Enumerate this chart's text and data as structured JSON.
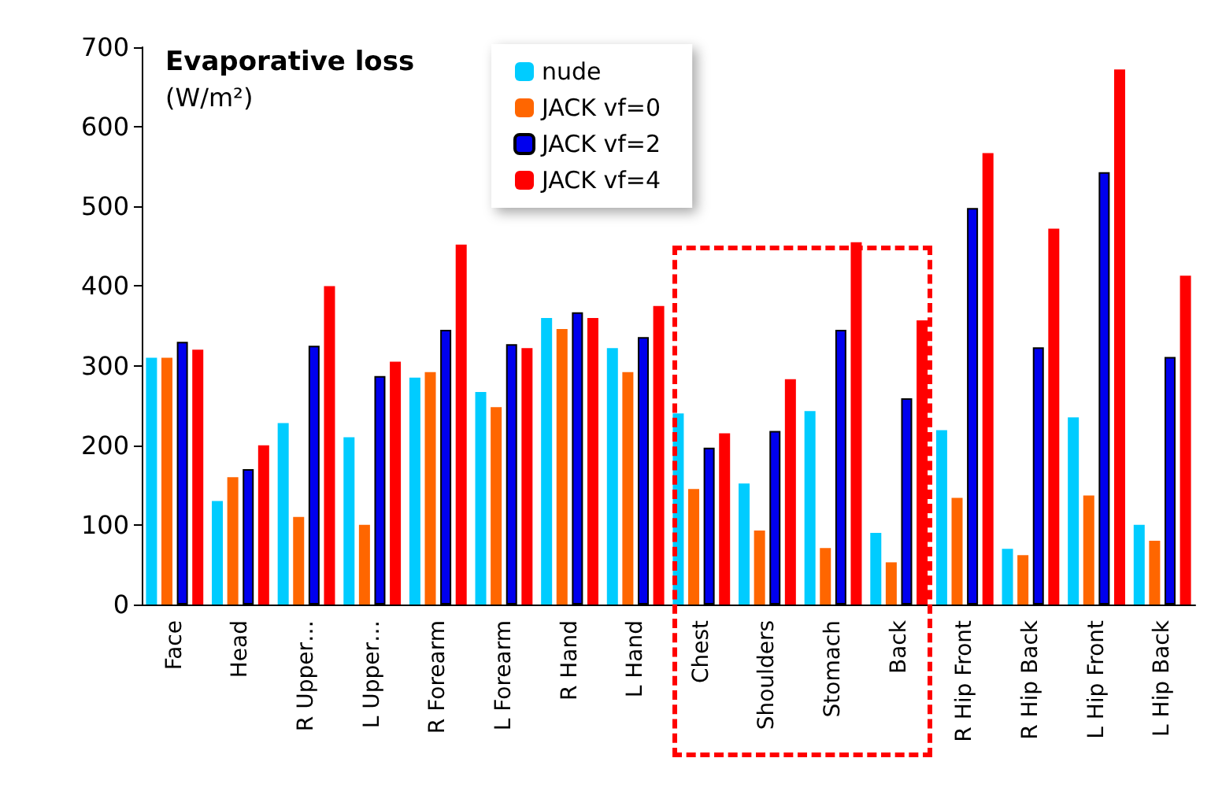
{
  "chart_data": {
    "type": "bar",
    "title": "Evaporative loss",
    "subtitle": "(W/m²)",
    "categories": [
      "Face",
      "Head",
      "R Upper…",
      "L Upper…",
      "R Forearm",
      "L Forearm",
      "R Hand",
      "L Hand",
      "Chest",
      "Shoulders",
      "Stomach",
      "Back",
      "R Hip Front",
      "R Hip Back",
      "L Hip Front",
      "L Hip Back"
    ],
    "series": [
      {
        "name": "nude",
        "color": "#00ccff",
        "values": [
          310,
          130,
          228,
          210,
          285,
          267,
          360,
          322,
          240,
          152,
          243,
          90,
          219,
          70,
          235,
          100
        ]
      },
      {
        "name": "JACK vf=0",
        "color": "#ff6600",
        "values": [
          310,
          160,
          110,
          100,
          292,
          248,
          346,
          292,
          145,
          93,
          71,
          53,
          134,
          62,
          137,
          80
        ]
      },
      {
        "name": "JACK vf=2",
        "color": "#0000ee",
        "values": [
          330,
          170,
          325,
          287,
          345,
          327,
          367,
          336,
          197,
          218,
          345,
          259,
          498,
          323,
          543,
          311
        ]
      },
      {
        "name": "JACK vf=4",
        "color": "#ff0000",
        "values": [
          320,
          200,
          400,
          305,
          452,
          322,
          360,
          375,
          215,
          283,
          455,
          357,
          567,
          472,
          672,
          413
        ]
      }
    ],
    "ylim": [
      0,
      700
    ],
    "yticks": [
      0,
      100,
      200,
      300,
      400,
      500,
      600,
      700
    ],
    "grid": false,
    "legend": "top"
  }
}
